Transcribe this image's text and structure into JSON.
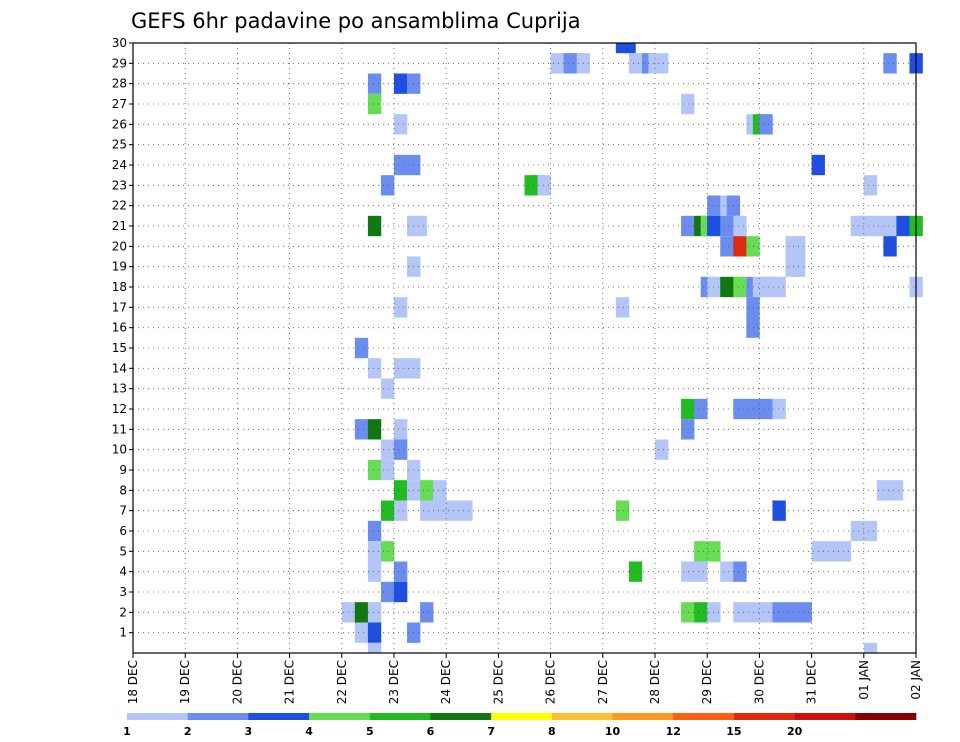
{
  "chart_data": {
    "type": "heatmap",
    "title": "GEFS 6hr padavine po ansamblima Cuprija",
    "x_ticks": [
      "18 DEC",
      "19 DEC",
      "20 DEC",
      "21 DEC",
      "22 DEC",
      "23 DEC",
      "24 DEC",
      "25 DEC",
      "26 DEC",
      "27 DEC",
      "28 DEC",
      "29 DEC",
      "30 DEC",
      "31 DEC",
      "01 JAN",
      "02 JAN"
    ],
    "x_range_days": [
      0,
      15
    ],
    "y_ticks": [
      1,
      2,
      3,
      4,
      5,
      6,
      7,
      8,
      9,
      10,
      11,
      12,
      13,
      14,
      15,
      16,
      17,
      18,
      19,
      20,
      21,
      22,
      23,
      24,
      25,
      26,
      27,
      28,
      29,
      30
    ],
    "y_range": [
      0,
      30
    ],
    "grid": true,
    "colorbar": {
      "position": "bottom",
      "levels": [
        "1",
        "2",
        "3",
        "4",
        "5",
        "6",
        "7",
        "8",
        "10",
        "12",
        "15",
        "20"
      ],
      "colors": [
        "#b3c6f7",
        "#6a8def",
        "#1f4fe0",
        "#66dd55",
        "#22bb22",
        "#117711",
        "#ffff00",
        "#ffc030",
        "#ff9920",
        "#ff6010",
        "#e02a10",
        "#cc1010",
        "#880000"
      ]
    },
    "cells": [
      {
        "m": 30,
        "d": 9.25,
        "c": 2
      },
      {
        "m": 30,
        "d": 9.375,
        "c": 2
      },
      {
        "m": 29,
        "d": 8.0,
        "c": 0
      },
      {
        "m": 29,
        "d": 8.125,
        "c": 0
      },
      {
        "m": 29,
        "d": 8.25,
        "c": 1
      },
      {
        "m": 29,
        "d": 8.375,
        "c": 1
      },
      {
        "m": 29,
        "d": 8.5,
        "c": 0
      },
      {
        "m": 29,
        "d": 9.5,
        "c": 0
      },
      {
        "m": 29,
        "d": 9.625,
        "c": 0
      },
      {
        "m": 29,
        "d": 9.75,
        "c": 1
      },
      {
        "m": 29,
        "d": 9.875,
        "c": 0
      },
      {
        "m": 29,
        "d": 10.0,
        "c": 0
      },
      {
        "m": 29,
        "d": 14.375,
        "c": 1
      },
      {
        "m": 29,
        "d": 14.875,
        "c": 2
      },
      {
        "m": 28,
        "d": 4.5,
        "c": 1
      },
      {
        "m": 28,
        "d": 5.0,
        "c": 2
      },
      {
        "m": 28,
        "d": 5.25,
        "c": 1
      },
      {
        "m": 27,
        "d": 4.5,
        "c": 3
      },
      {
        "m": 27,
        "d": 10.5,
        "c": 0
      },
      {
        "m": 26,
        "d": 5.0,
        "c": 0
      },
      {
        "m": 26,
        "d": 11.75,
        "c": 0
      },
      {
        "m": 26,
        "d": 11.875,
        "c": 4
      },
      {
        "m": 26,
        "d": 12.0,
        "c": 1
      },
      {
        "m": 24,
        "d": 5.0,
        "c": 1
      },
      {
        "m": 24,
        "d": 5.25,
        "c": 1
      },
      {
        "m": 24,
        "d": 13.0,
        "c": 2
      },
      {
        "m": 23,
        "d": 4.75,
        "c": 1
      },
      {
        "m": 23,
        "d": 7.5,
        "c": 4
      },
      {
        "m": 23,
        "d": 7.625,
        "c": 4
      },
      {
        "m": 23,
        "d": 7.75,
        "c": 0
      },
      {
        "m": 23,
        "d": 14.0,
        "c": 0
      },
      {
        "m": 22,
        "d": 11.0,
        "c": 1
      },
      {
        "m": 22,
        "d": 11.25,
        "c": 0
      },
      {
        "m": 22,
        "d": 11.375,
        "c": 1
      },
      {
        "m": 21,
        "d": 4.5,
        "c": 5
      },
      {
        "m": 21,
        "d": 5.25,
        "c": 0
      },
      {
        "m": 21,
        "d": 5.375,
        "c": 0
      },
      {
        "m": 21,
        "d": 10.5,
        "c": 1
      },
      {
        "m": 21,
        "d": 10.75,
        "c": 5
      },
      {
        "m": 21,
        "d": 10.875,
        "c": 3
      },
      {
        "m": 21,
        "d": 11.0,
        "c": 2
      },
      {
        "m": 21,
        "d": 11.25,
        "c": 1
      },
      {
        "m": 21,
        "d": 11.5,
        "c": 0
      },
      {
        "m": 21,
        "d": 13.75,
        "c": 0
      },
      {
        "m": 21,
        "d": 13.875,
        "c": 0
      },
      {
        "m": 21,
        "d": 14.0,
        "c": 0
      },
      {
        "m": 21,
        "d": 14.125,
        "c": 0
      },
      {
        "m": 21,
        "d": 14.375,
        "c": 0
      },
      {
        "m": 21,
        "d": 14.625,
        "c": 2
      },
      {
        "m": 21,
        "d": 14.875,
        "c": 4
      },
      {
        "m": 20,
        "d": 11.25,
        "c": 1
      },
      {
        "m": 20,
        "d": 11.5,
        "c": 10
      },
      {
        "m": 20,
        "d": 11.75,
        "c": 3
      },
      {
        "m": 20,
        "d": 12.5,
        "c": 0
      },
      {
        "m": 20,
        "d": 12.625,
        "c": 0
      },
      {
        "m": 20,
        "d": 14.375,
        "c": 2
      },
      {
        "m": 19,
        "d": 5.25,
        "c": 0
      },
      {
        "m": 19,
        "d": 12.5,
        "c": 0
      },
      {
        "m": 19,
        "d": 12.625,
        "c": 0
      },
      {
        "m": 18,
        "d": 10.875,
        "c": 1
      },
      {
        "m": 18,
        "d": 11.0,
        "c": 0
      },
      {
        "m": 18,
        "d": 11.25,
        "c": 5
      },
      {
        "m": 18,
        "d": 11.5,
        "c": 3
      },
      {
        "m": 18,
        "d": 11.75,
        "c": 1
      },
      {
        "m": 18,
        "d": 11.875,
        "c": 0
      },
      {
        "m": 18,
        "d": 12.0,
        "c": 0
      },
      {
        "m": 18,
        "d": 12.125,
        "c": 0
      },
      {
        "m": 18,
        "d": 12.25,
        "c": 0
      },
      {
        "m": 18,
        "d": 14.875,
        "c": 0
      },
      {
        "m": 17,
        "d": 5.0,
        "c": 0
      },
      {
        "m": 17,
        "d": 9.25,
        "c": 0
      },
      {
        "m": 17,
        "d": 11.75,
        "c": 1
      },
      {
        "m": 16,
        "d": 11.75,
        "c": 1
      },
      {
        "m": 15,
        "d": 4.25,
        "c": 1
      },
      {
        "m": 14,
        "d": 4.5,
        "c": 0
      },
      {
        "m": 14,
        "d": 5.0,
        "c": 0
      },
      {
        "m": 14,
        "d": 5.25,
        "c": 0
      },
      {
        "m": 13,
        "d": 4.75,
        "c": 0
      },
      {
        "m": 12,
        "d": 10.5,
        "c": 4
      },
      {
        "m": 12,
        "d": 10.75,
        "c": 1
      },
      {
        "m": 12,
        "d": 11.5,
        "c": 1
      },
      {
        "m": 12,
        "d": 11.75,
        "c": 1
      },
      {
        "m": 12,
        "d": 12.0,
        "c": 1
      },
      {
        "m": 12,
        "d": 12.25,
        "c": 0
      },
      {
        "m": 11,
        "d": 4.25,
        "c": 1
      },
      {
        "m": 11,
        "d": 4.5,
        "c": 5
      },
      {
        "m": 11,
        "d": 5.0,
        "c": 0
      },
      {
        "m": 11,
        "d": 10.5,
        "c": 1
      },
      {
        "m": 10,
        "d": 4.75,
        "c": 0
      },
      {
        "m": 10,
        "d": 5.0,
        "c": 1
      },
      {
        "m": 10,
        "d": 10.0,
        "c": 0
      },
      {
        "m": 9,
        "d": 4.5,
        "c": 3
      },
      {
        "m": 9,
        "d": 4.75,
        "c": 0
      },
      {
        "m": 9,
        "d": 5.25,
        "c": 0
      },
      {
        "m": 8,
        "d": 5.0,
        "c": 4
      },
      {
        "m": 8,
        "d": 5.25,
        "c": 0
      },
      {
        "m": 8,
        "d": 5.5,
        "c": 3
      },
      {
        "m": 8,
        "d": 5.75,
        "c": 0
      },
      {
        "m": 8,
        "d": 14.25,
        "c": 0
      },
      {
        "m": 8,
        "d": 14.5,
        "c": 0
      },
      {
        "m": 7,
        "d": 4.75,
        "c": 4
      },
      {
        "m": 7,
        "d": 5.0,
        "c": 0
      },
      {
        "m": 7,
        "d": 5.5,
        "c": 0
      },
      {
        "m": 7,
        "d": 5.75,
        "c": 0
      },
      {
        "m": 7,
        "d": 6.0,
        "c": 0
      },
      {
        "m": 7,
        "d": 6.25,
        "c": 0
      },
      {
        "m": 7,
        "d": 9.25,
        "c": 3
      },
      {
        "m": 7,
        "d": 12.25,
        "c": 2
      },
      {
        "m": 6,
        "d": 4.5,
        "c": 1
      },
      {
        "m": 6,
        "d": 13.75,
        "c": 0
      },
      {
        "m": 6,
        "d": 14.0,
        "c": 0
      },
      {
        "m": 5,
        "d": 4.5,
        "c": 0
      },
      {
        "m": 5,
        "d": 4.75,
        "c": 3
      },
      {
        "m": 5,
        "d": 10.75,
        "c": 3
      },
      {
        "m": 5,
        "d": 11.0,
        "c": 3
      },
      {
        "m": 5,
        "d": 13.0,
        "c": 0
      },
      {
        "m": 5,
        "d": 13.25,
        "c": 0
      },
      {
        "m": 5,
        "d": 13.5,
        "c": 0
      },
      {
        "m": 4,
        "d": 4.5,
        "c": 0
      },
      {
        "m": 4,
        "d": 5.0,
        "c": 1
      },
      {
        "m": 4,
        "d": 9.5,
        "c": 4
      },
      {
        "m": 4,
        "d": 10.5,
        "c": 0
      },
      {
        "m": 4,
        "d": 10.75,
        "c": 0
      },
      {
        "m": 4,
        "d": 11.25,
        "c": 0
      },
      {
        "m": 4,
        "d": 11.5,
        "c": 1
      },
      {
        "m": 3,
        "d": 4.75,
        "c": 1
      },
      {
        "m": 3,
        "d": 5.0,
        "c": 2
      },
      {
        "m": 2,
        "d": 4.0,
        "c": 0
      },
      {
        "m": 2,
        "d": 4.25,
        "c": 5
      },
      {
        "m": 2,
        "d": 4.5,
        "c": 0
      },
      {
        "m": 2,
        "d": 5.5,
        "c": 1
      },
      {
        "m": 2,
        "d": 10.5,
        "c": 3
      },
      {
        "m": 2,
        "d": 10.75,
        "c": 4
      },
      {
        "m": 2,
        "d": 11.0,
        "c": 0
      },
      {
        "m": 2,
        "d": 11.5,
        "c": 0
      },
      {
        "m": 2,
        "d": 11.75,
        "c": 0
      },
      {
        "m": 2,
        "d": 12.0,
        "c": 0
      },
      {
        "m": 2,
        "d": 12.25,
        "c": 1
      },
      {
        "m": 2,
        "d": 12.5,
        "c": 1
      },
      {
        "m": 2,
        "d": 12.75,
        "c": 1
      },
      {
        "m": 1,
        "d": 4.25,
        "c": 0
      },
      {
        "m": 1,
        "d": 4.5,
        "c": 2
      },
      {
        "m": 1,
        "d": 5.25,
        "c": 1
      },
      {
        "m": 0,
        "d": 4.5,
        "c": 0
      },
      {
        "m": 0,
        "d": 14.0,
        "c": 0
      }
    ]
  }
}
